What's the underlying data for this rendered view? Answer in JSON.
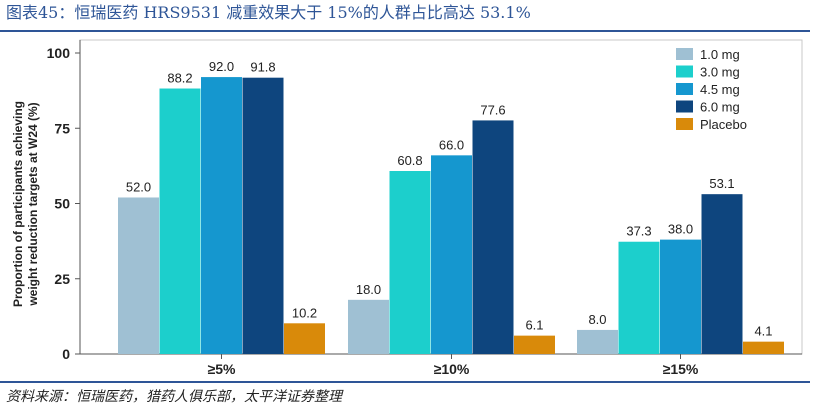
{
  "page": {
    "title": "图表45：恒瑞医药 HRS9531 减重效果大于 15%的人群占比高达 53.1%",
    "source": "资料来源：恒瑞医药，猎药人俱乐部，太平洋证券整理"
  },
  "chart_data": {
    "type": "bar",
    "title": "",
    "xlabel": "",
    "ylabel_lines": [
      "Proportion of participants achieving",
      "weight reduction targets at W24 (%)"
    ],
    "categories": [
      "≥5%",
      "≥10%",
      "≥15%"
    ],
    "ylim": [
      0,
      100
    ],
    "yticks": [
      0,
      25,
      50,
      75,
      100
    ],
    "grid": false,
    "legend_position": "top-right",
    "series": [
      {
        "name": "1.0 mg",
        "color": "#9fc0d3",
        "values": [
          52.0,
          18.0,
          8.0
        ],
        "labels": [
          "52.0",
          "18.0",
          "8.0"
        ]
      },
      {
        "name": "3.0 mg",
        "color": "#1ccfcc",
        "values": [
          88.2,
          60.8,
          37.3
        ],
        "labels": [
          "88.2",
          "60.8",
          "37.3"
        ]
      },
      {
        "name": "4.5 mg",
        "color": "#1597cf",
        "values": [
          92.0,
          66.0,
          38.0
        ],
        "labels": [
          "92.0",
          "66.0",
          "38.0"
        ]
      },
      {
        "name": "6.0 mg",
        "color": "#0e457e",
        "values": [
          91.8,
          77.6,
          53.1
        ],
        "labels": [
          "91.8",
          "77.6",
          "53.1"
        ]
      },
      {
        "name": "Placebo",
        "color": "#d98a0a",
        "values": [
          10.2,
          6.1,
          4.1
        ],
        "labels": [
          "10.2",
          "6.1",
          "4.1"
        ]
      }
    ]
  }
}
